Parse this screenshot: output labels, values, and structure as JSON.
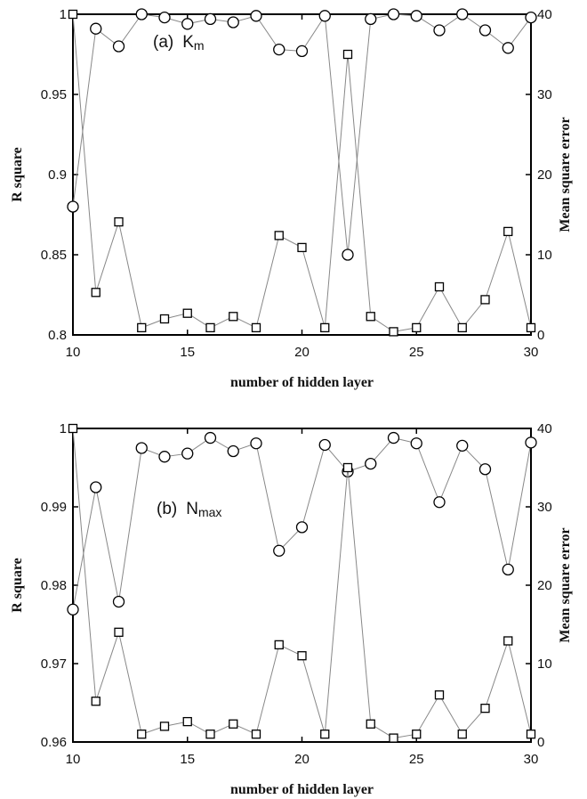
{
  "chart_data": [
    {
      "type": "line",
      "annotation": "(a)",
      "annotation_var": "K",
      "annotation_sub": "m",
      "xlabel": "number of hidden layer",
      "ylabel": "R square",
      "y2label": "Mean square error",
      "xlim": [
        10,
        30
      ],
      "ylim": [
        0.8,
        1
      ],
      "y2lim": [
        0,
        40
      ],
      "xticks": [
        "10",
        "15",
        "20",
        "25",
        "30"
      ],
      "yticks": [
        "0.8",
        "0.85",
        "0.9",
        "0.95",
        "1"
      ],
      "y2ticks": [
        "0",
        "10",
        "20",
        "30",
        "40"
      ],
      "x": [
        10,
        11,
        12,
        13,
        14,
        15,
        16,
        17,
        18,
        19,
        20,
        21,
        22,
        23,
        24,
        25,
        26,
        27,
        28,
        29,
        30
      ],
      "series": [
        {
          "marker": "circle",
          "axis": "left",
          "values": [
            0.88,
            0.991,
            0.98,
            1.0,
            0.998,
            0.994,
            0.997,
            0.995,
            0.999,
            0.978,
            0.977,
            0.999,
            0.85,
            0.997,
            1.0,
            0.999,
            0.99,
            1.0,
            0.99,
            0.979,
            0.998
          ]
        },
        {
          "marker": "square",
          "axis": "right",
          "values": [
            40,
            5.3,
            14.1,
            0.9,
            2.0,
            2.7,
            0.9,
            2.3,
            0.9,
            12.4,
            10.9,
            0.9,
            35.0,
            2.3,
            0.4,
            0.9,
            6.0,
            0.9,
            4.4,
            12.9,
            0.9
          ]
        }
      ]
    },
    {
      "type": "line",
      "annotation": "(b)",
      "annotation_var": "N",
      "annotation_sub": "max",
      "xlabel": "number of hidden layer",
      "ylabel": "R square",
      "y2label": "Mean square error",
      "xlim": [
        10,
        30
      ],
      "ylim": [
        0.96,
        1
      ],
      "y2lim": [
        0,
        40
      ],
      "xticks": [
        "10",
        "15",
        "20",
        "25",
        "30"
      ],
      "yticks": [
        "0.96",
        "0.97",
        "0.98",
        "0.99",
        "1"
      ],
      "y2ticks": [
        "0",
        "10",
        "20",
        "30",
        "40"
      ],
      "x": [
        10,
        11,
        12,
        13,
        14,
        15,
        16,
        17,
        18,
        19,
        20,
        21,
        22,
        23,
        24,
        25,
        26,
        27,
        28,
        29,
        30
      ],
      "series": [
        {
          "marker": "circle",
          "axis": "left",
          "values": [
            0.9769,
            0.9925,
            0.9779,
            0.9975,
            0.9964,
            0.9968,
            0.9988,
            0.9971,
            0.9981,
            0.9844,
            0.9874,
            0.9979,
            0.9945,
            0.9955,
            0.9988,
            0.9981,
            0.9906,
            0.9978,
            0.9948,
            0.982,
            0.9982
          ]
        },
        {
          "marker": "square",
          "axis": "right",
          "values": [
            40,
            5.2,
            14.0,
            1.0,
            2.0,
            2.6,
            1.0,
            2.3,
            1.0,
            12.4,
            11.0,
            1.0,
            35.0,
            2.3,
            0.5,
            1.0,
            6.0,
            1.0,
            4.3,
            12.9,
            1.0
          ]
        }
      ]
    }
  ]
}
